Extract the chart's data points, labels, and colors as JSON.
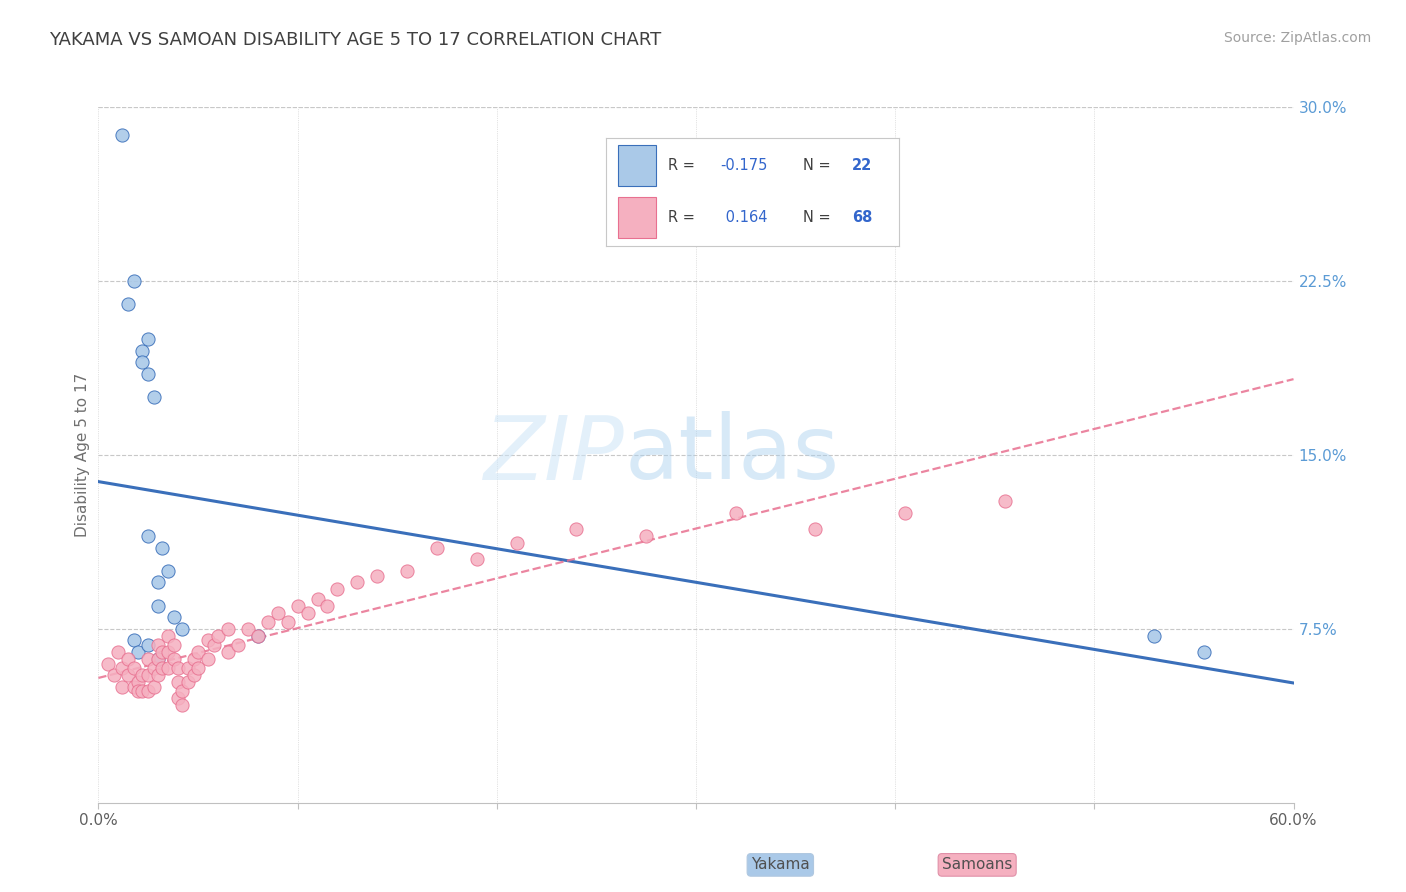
{
  "title": "YAKAMA VS SAMOAN DISABILITY AGE 5 TO 17 CORRELATION CHART",
  "source": "Source: ZipAtlas.com",
  "ylabel": "Disability Age 5 to 17",
  "xlim": [
    0.0,
    0.6
  ],
  "ylim": [
    -0.02,
    0.32
  ],
  "plot_ylim": [
    0.0,
    0.3
  ],
  "xtick_positions": [
    0.0,
    0.1,
    0.2,
    0.3,
    0.4,
    0.5,
    0.6
  ],
  "xticklabels": [
    "0.0%",
    "",
    "",
    "",
    "",
    "",
    "60.0%"
  ],
  "ytick_positions": [
    0.075,
    0.15,
    0.225,
    0.3
  ],
  "ytick_labels": [
    "7.5%",
    "15.0%",
    "22.5%",
    "30.0%"
  ],
  "color_yakama": "#aac9e8",
  "color_samoan": "#f5b0c0",
  "line_color_yakama": "#3a6fba",
  "line_color_samoan": "#e87090",
  "watermark_zip": "ZIP",
  "watermark_atlas": "atlas",
  "background_color": "#ffffff",
  "grid_color": "#c8c8c8",
  "title_color": "#404040",
  "title_fontsize": 13,
  "axis_label_color": "#707070",
  "tick_color_right": "#5b9bd5",
  "legend_R1_text": "R = -0.175",
  "legend_N1_text": "N = 22",
  "legend_R2_text": "R =  0.164",
  "legend_N2_text": "N = 68",
  "yakama_x": [
    0.012,
    0.015,
    0.018,
    0.022,
    0.025,
    0.022,
    0.025,
    0.028,
    0.025,
    0.032,
    0.035,
    0.03,
    0.03,
    0.038,
    0.042,
    0.018,
    0.02,
    0.025,
    0.03,
    0.08,
    0.53,
    0.555
  ],
  "yakama_y": [
    0.288,
    0.215,
    0.225,
    0.195,
    0.2,
    0.19,
    0.185,
    0.175,
    0.115,
    0.11,
    0.1,
    0.095,
    0.085,
    0.08,
    0.075,
    0.07,
    0.065,
    0.068,
    0.062,
    0.072,
    0.072,
    0.065
  ],
  "samoan_x": [
    0.005,
    0.008,
    0.01,
    0.012,
    0.012,
    0.015,
    0.015,
    0.018,
    0.018,
    0.02,
    0.02,
    0.022,
    0.022,
    0.025,
    0.025,
    0.025,
    0.028,
    0.028,
    0.03,
    0.03,
    0.03,
    0.032,
    0.032,
    0.035,
    0.035,
    0.035,
    0.038,
    0.038,
    0.04,
    0.04,
    0.04,
    0.042,
    0.042,
    0.045,
    0.045,
    0.048,
    0.048,
    0.05,
    0.05,
    0.055,
    0.055,
    0.058,
    0.06,
    0.065,
    0.065,
    0.07,
    0.075,
    0.08,
    0.085,
    0.09,
    0.095,
    0.1,
    0.105,
    0.11,
    0.115,
    0.12,
    0.13,
    0.14,
    0.155,
    0.17,
    0.19,
    0.21,
    0.24,
    0.275,
    0.32,
    0.36,
    0.405,
    0.455
  ],
  "samoan_y": [
    0.06,
    0.055,
    0.065,
    0.058,
    0.05,
    0.062,
    0.055,
    0.058,
    0.05,
    0.052,
    0.048,
    0.055,
    0.048,
    0.062,
    0.055,
    0.048,
    0.058,
    0.05,
    0.068,
    0.062,
    0.055,
    0.065,
    0.058,
    0.072,
    0.065,
    0.058,
    0.068,
    0.062,
    0.058,
    0.052,
    0.045,
    0.048,
    0.042,
    0.058,
    0.052,
    0.062,
    0.055,
    0.065,
    0.058,
    0.07,
    0.062,
    0.068,
    0.072,
    0.065,
    0.075,
    0.068,
    0.075,
    0.072,
    0.078,
    0.082,
    0.078,
    0.085,
    0.082,
    0.088,
    0.085,
    0.092,
    0.095,
    0.098,
    0.1,
    0.11,
    0.105,
    0.112,
    0.118,
    0.115,
    0.125,
    0.118,
    0.125,
    0.13
  ]
}
